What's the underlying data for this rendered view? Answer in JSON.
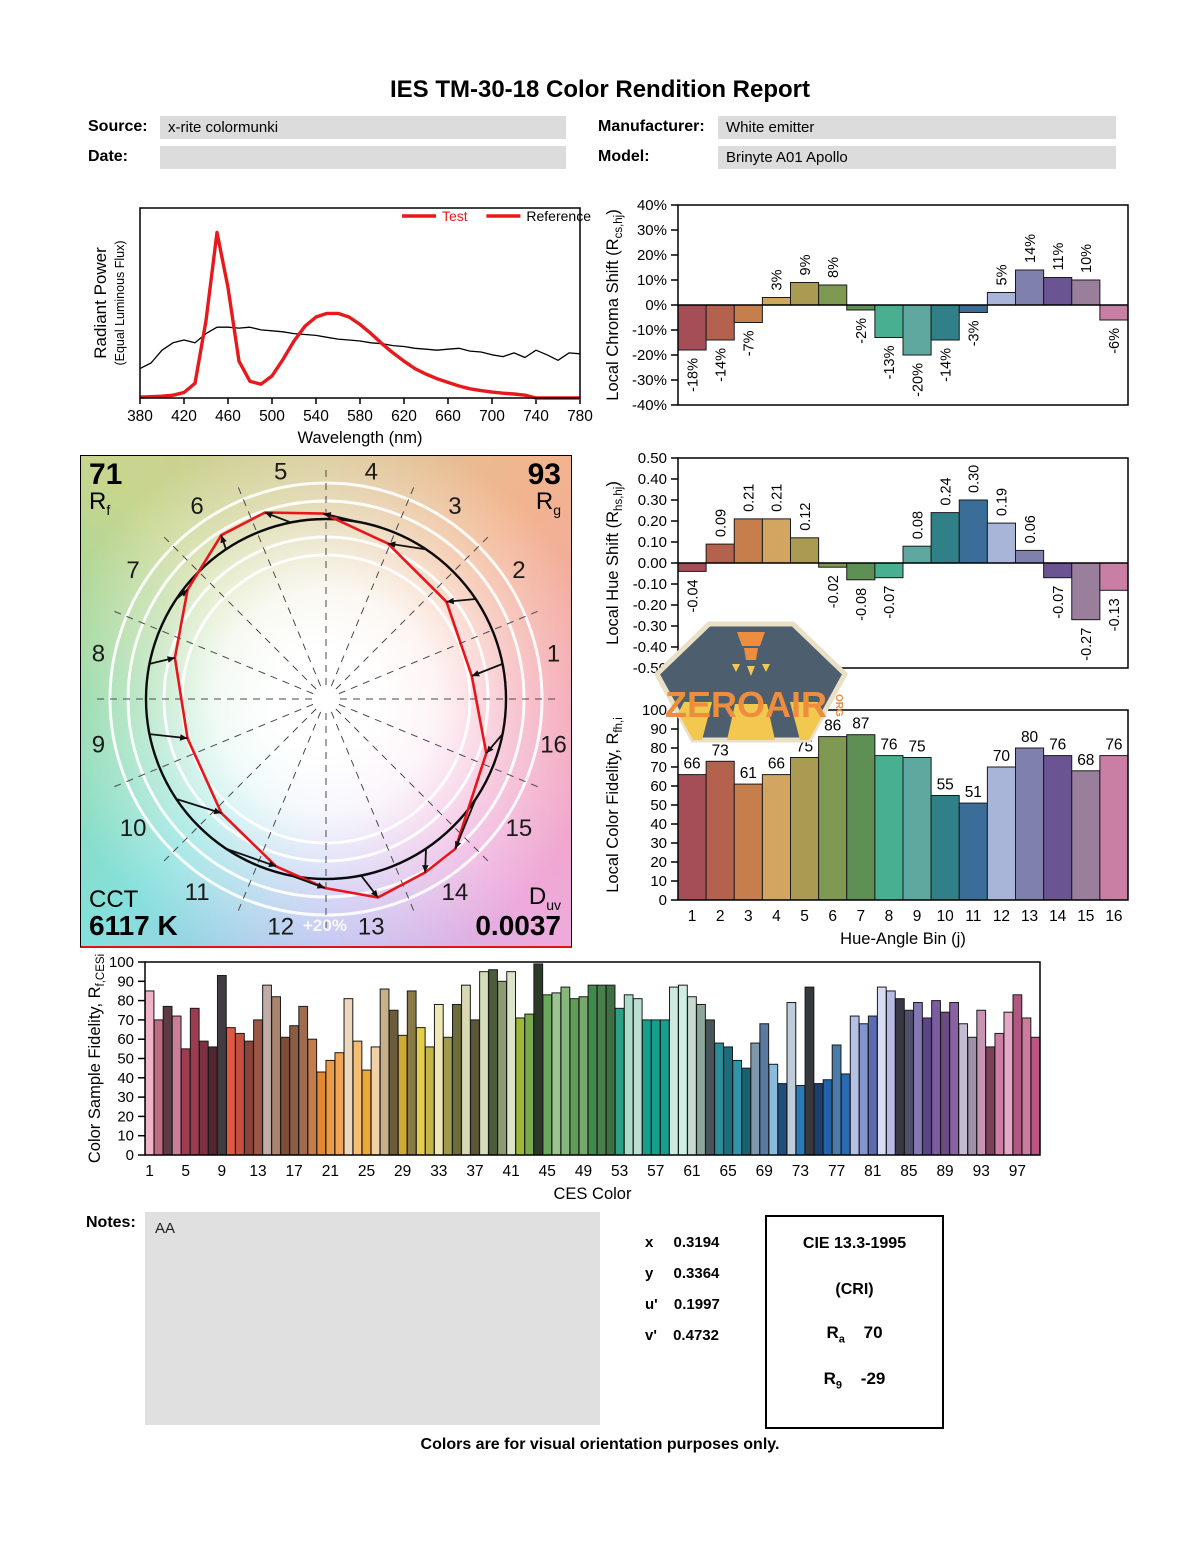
{
  "report": {
    "title": "IES TM-30-18 Color Rendition Report"
  },
  "header": {
    "source": {
      "label": "Source:",
      "value": "x-rite colormunki"
    },
    "manufacturer": {
      "label": "Manufacturer:",
      "value": "White emitter"
    },
    "date": {
      "label": "Date:",
      "value": ""
    },
    "model": {
      "label": "Model:",
      "value": "Brinyte A01 Apollo"
    }
  },
  "cvg": {
    "rf_value": "71",
    "rf_label_main": "R",
    "rf_label_sub": "f",
    "rg_value": "93",
    "rg_label_main": "R",
    "rg_label_sub": "g",
    "cct_label": "CCT",
    "cct_value": "6117 K",
    "duv_label_main": "D",
    "duv_label_sub": "uv",
    "duv_value": "0.0037",
    "ring_label": "+20%",
    "bin_numbers": [
      1,
      2,
      3,
      4,
      5,
      6,
      7,
      8,
      9,
      10,
      11,
      12,
      13,
      14,
      15,
      16
    ]
  },
  "notes": {
    "label": "Notes:",
    "value": "AA"
  },
  "chromaticity": {
    "rows": [
      {
        "label": "x",
        "value": "0.3194"
      },
      {
        "label": "y",
        "value": "0.3364"
      },
      {
        "label": "u'",
        "value": "0.1997"
      },
      {
        "label": "v'",
        "value": "0.4732"
      }
    ]
  },
  "cri_box": {
    "title": "CIE 13.3-1995",
    "subtitle": "(CRI)",
    "rows": [
      {
        "label_main": "R",
        "label_sub": "a",
        "value": "70"
      },
      {
        "label_main": "R",
        "label_sub": "9",
        "value": "-29"
      }
    ]
  },
  "footer": {
    "text": "Colors are for visual orientation purposes only."
  },
  "watermark": {
    "main": "ZEROAIR",
    "suffix": "ORG"
  },
  "hue_bin_colors": [
    "#a64e58",
    "#b4624e",
    "#c67f4c",
    "#d2a660",
    "#a99c52",
    "#7f9852",
    "#5e9055",
    "#48b090",
    "#5ea8a0",
    "#2f8087",
    "#3a6e99",
    "#a8b4d8",
    "#8080ac",
    "#6b5492",
    "#9a7f9c",
    "#c97fa4"
  ],
  "chart_data": [
    {
      "name": "spectral_power_distribution",
      "type": "line",
      "xlabel": "Wavelength (nm)",
      "ylabel": "Radiant Power",
      "ylabel2": "(Equal Luminous Flux)",
      "xlim": [
        380,
        780
      ],
      "xticks": [
        380,
        420,
        460,
        500,
        540,
        580,
        620,
        660,
        700,
        740,
        780
      ],
      "ylim": [
        0,
        1
      ],
      "x_start": 380,
      "x_step": 10,
      "legend": [
        {
          "label": "Test",
          "line_color": "#e8191d",
          "text_color": "#e8191d"
        },
        {
          "label": "Reference",
          "line_color": "#e8191d",
          "text_color": "#000000"
        }
      ],
      "series": [
        {
          "name": "Test",
          "color": "#e8191d",
          "width": 3.4,
          "values": [
            0.005,
            0.007,
            0.01,
            0.015,
            0.03,
            0.08,
            0.42,
            0.9,
            0.6,
            0.2,
            0.09,
            0.075,
            0.12,
            0.21,
            0.31,
            0.39,
            0.44,
            0.46,
            0.46,
            0.44,
            0.4,
            0.35,
            0.295,
            0.245,
            0.2,
            0.16,
            0.13,
            0.105,
            0.085,
            0.065,
            0.05,
            0.04,
            0.032,
            0.026,
            0.022,
            0.015,
            0.0,
            0.0,
            0.0,
            0.0,
            0.0
          ]
        },
        {
          "name": "Reference",
          "color": "#000000",
          "width": 1.3,
          "values": [
            0.16,
            0.19,
            0.26,
            0.3,
            0.315,
            0.3,
            0.35,
            0.385,
            0.385,
            0.38,
            0.385,
            0.37,
            0.365,
            0.36,
            0.35,
            0.345,
            0.34,
            0.33,
            0.32,
            0.315,
            0.31,
            0.3,
            0.295,
            0.285,
            0.28,
            0.27,
            0.265,
            0.26,
            0.265,
            0.27,
            0.255,
            0.25,
            0.235,
            0.225,
            0.245,
            0.22,
            0.26,
            0.235,
            0.205,
            0.245,
            0.24
          ]
        }
      ]
    },
    {
      "name": "local_chroma_shift",
      "type": "bar",
      "ylabel_pre": "Local Chroma Shift (R",
      "ylabel_sub": "cs,hj",
      "ylabel_post": ")",
      "ylim": [
        -40,
        40
      ],
      "ytick_step": 10,
      "ytick_format": "pct",
      "label_mode": "rotated",
      "values": [
        -18,
        -14,
        -7,
        3,
        9,
        8,
        -2,
        -13,
        -20,
        -14,
        -3,
        5,
        14,
        11,
        10,
        -6
      ],
      "labels": [
        "-18%",
        "-14%",
        "-7%",
        "3%",
        "9%",
        "8%",
        "-2%",
        "-13%",
        "-20%",
        "-14%",
        "-3%",
        "5%",
        "14%",
        "11%",
        "10%",
        "-6%"
      ]
    },
    {
      "name": "local_hue_shift",
      "type": "bar",
      "ylabel_pre": "Local Hue Shift (R",
      "ylabel_sub": "hs,hj",
      "ylabel_post": ")",
      "ylim": [
        -0.5,
        0.5
      ],
      "ytick_step": 0.1,
      "ytick_format": "dec2",
      "label_mode": "rotated",
      "values": [
        -0.04,
        0.09,
        0.21,
        0.21,
        0.12,
        -0.02,
        -0.08,
        -0.07,
        0.08,
        0.24,
        0.3,
        0.19,
        0.06,
        -0.07,
        -0.27,
        -0.13
      ],
      "labels": [
        "-0.04",
        "0.09",
        "0.21",
        "0.21",
        "0.12",
        "-0.02",
        "-0.08",
        "-0.07",
        "0.08",
        "0.24",
        "0.30",
        "0.19",
        "0.06",
        "-0.07",
        "-0.27",
        "-0.13"
      ]
    },
    {
      "name": "local_color_fidelity",
      "type": "bar",
      "ylabel_pre": "Local Color Fidelity, R",
      "ylabel_sub": "fh,i",
      "ylabel_post": "",
      "ylim": [
        0,
        100
      ],
      "ytick_step": 10,
      "ytick_format": "int",
      "label_mode": "top",
      "xlabel": "Hue-Angle Bin (j)",
      "xticks": [
        "1",
        "2",
        "3",
        "4",
        "5",
        "6",
        "7",
        "8",
        "9",
        "10",
        "11",
        "12",
        "13",
        "14",
        "15",
        "16"
      ],
      "values": [
        66,
        73,
        61,
        66,
        75,
        86,
        87,
        76,
        75,
        55,
        51,
        70,
        80,
        76,
        68,
        76
      ],
      "labels": [
        "66",
        "73",
        "61",
        "66",
        "75",
        "86",
        "87",
        "76",
        "75",
        "55",
        "51",
        "70",
        "80",
        "76",
        "68",
        "76"
      ]
    },
    {
      "name": "color_sample_fidelity",
      "type": "bar",
      "ylabel_pre": "Color Sample Fidelity, R",
      "ylabel_sub": "f,CESi",
      "ylabel_post": "",
      "ylim": [
        0,
        100
      ],
      "ytick_step": 10,
      "ytick_format": "int",
      "label_mode": "none",
      "xlabel": "CES Color",
      "xtick_first": 1,
      "xtick_every": 4,
      "values": [
        85,
        70,
        77,
        72,
        55,
        76,
        59,
        56,
        93,
        66,
        63,
        59,
        70,
        88,
        82,
        61,
        67,
        77,
        60,
        43,
        49,
        53,
        81,
        59,
        44,
        56,
        86,
        75,
        62,
        85,
        66,
        56,
        78,
        61,
        78,
        88,
        70,
        95,
        96,
        90,
        95,
        71,
        73,
        99,
        83,
        84,
        87,
        81,
        82,
        88,
        88,
        88,
        76,
        83,
        81,
        70,
        70,
        70,
        87,
        88,
        82,
        78,
        70,
        58,
        56,
        49,
        45,
        58,
        68,
        47,
        37,
        79,
        36,
        87,
        37,
        39,
        57,
        42,
        72,
        68,
        72,
        87,
        85,
        81,
        75,
        79,
        71,
        80,
        74,
        79,
        68,
        61,
        75,
        56,
        63,
        74,
        83,
        71,
        61
      ],
      "colors": [
        "#f0b4c8",
        "#c06a84",
        "#5e3a44",
        "#cc7e98",
        "#a03c50",
        "#9c3c50",
        "#7c3040",
        "#542430",
        "#403c40",
        "#e05844",
        "#c45040",
        "#8c4438",
        "#9c5844",
        "#c2aca8",
        "#a8846c",
        "#7c4c38",
        "#8c5c44",
        "#a06c50",
        "#c47c4c",
        "#e08834",
        "#ec9c44",
        "#f0a454",
        "#ecd8bc",
        "#f4bc74",
        "#eca834",
        "#f0d0a4",
        "#c8b088",
        "#6c5c3c",
        "#d0a834",
        "#8a7a44",
        "#e4cc4c",
        "#c4b44c",
        "#f0e8b4",
        "#a09a4c",
        "#6c6c38",
        "#d8d8b4",
        "#5c5638",
        "#d4dcb8",
        "#4c5c3c",
        "#8c9c70",
        "#dce4cc",
        "#9cb834",
        "#7aa84c",
        "#2c3a28",
        "#6aa85c",
        "#9cc490",
        "#86b87c",
        "#5e9c58",
        "#76a86c",
        "#3e8a4c",
        "#48804c",
        "#3e7044",
        "#2ba085",
        "#aadcca",
        "#badfd2",
        "#12a08c",
        "#12a08c",
        "#14a08e",
        "#cbe9df",
        "#cfeee4",
        "#c6dacf",
        "#8ca69a",
        "#48565c",
        "#2c8c98",
        "#1c6c7a",
        "#2e96aa",
        "#176270",
        "#7c98aa",
        "#5a7aa2",
        "#8abade",
        "#1e4e7a",
        "#becdd9",
        "#2a7aba",
        "#36393d",
        "#1e3e6e",
        "#2262aa",
        "#4a7aaa",
        "#2a6ab2",
        "#b4c0e4",
        "#8494cc",
        "#5c6cb4",
        "#d8dcf0",
        "#b8bce4",
        "#383844",
        "#50506c",
        "#8478b4",
        "#5a4684",
        "#7c5ca0",
        "#6a4c80",
        "#8a62a4",
        "#c4bcd0",
        "#a090a8",
        "#c894b4",
        "#7c4058",
        "#cc7ea4",
        "#e4a8c4",
        "#b05880",
        "#cc7c9c",
        "#bc5484"
      ]
    },
    {
      "name": "color_vector_graphic",
      "type": "vector",
      "rf": 71,
      "rg": 93,
      "cct_k": 6117,
      "duv": 0.0037,
      "chroma_shift_pct": [
        -18,
        -14,
        -7,
        3,
        9,
        8,
        -2,
        -13,
        -20,
        -14,
        -3,
        5,
        14,
        11,
        10,
        -6
      ],
      "hue_shift": [
        -0.04,
        0.09,
        0.21,
        0.21,
        0.12,
        -0.02,
        -0.08,
        -0.07,
        0.08,
        0.24,
        0.3,
        0.19,
        0.06,
        -0.07,
        -0.27,
        -0.13
      ]
    }
  ]
}
